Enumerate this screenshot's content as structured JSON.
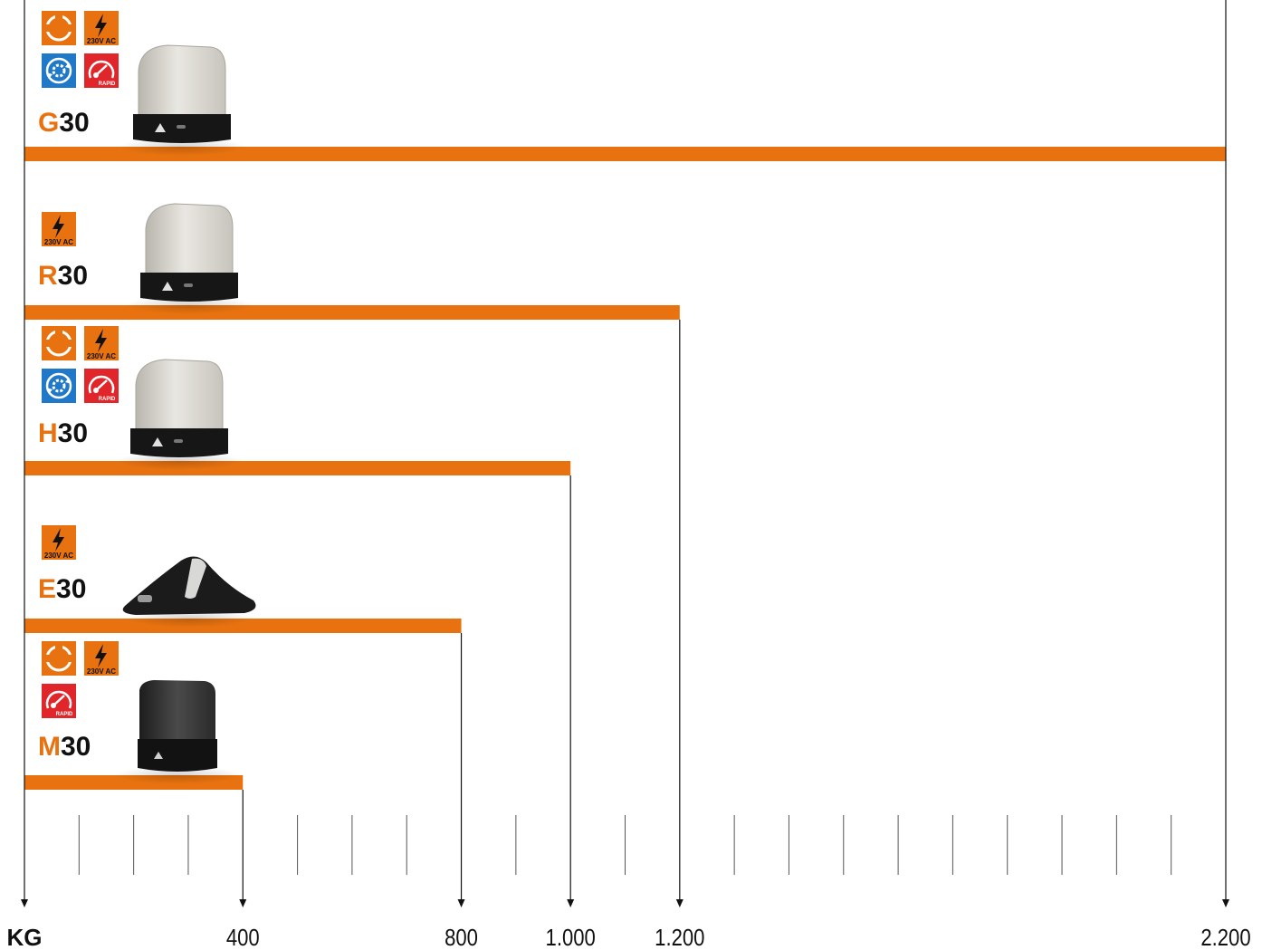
{
  "chart_data": {
    "type": "bar",
    "orientation": "horizontal",
    "unit_label": "KG",
    "categories": [
      "G30",
      "R30",
      "H30",
      "E30",
      "M30"
    ],
    "series": [
      {
        "values": [
          2200,
          1200,
          1000,
          800,
          400
        ]
      }
    ],
    "xlim": [
      0,
      2200
    ],
    "tick_labels": [
      "400",
      "800",
      "1.000",
      "1.200",
      "2.200"
    ],
    "tick_values": [
      400,
      800,
      1000,
      1200,
      2200
    ],
    "minor_ticks_step": 100,
    "grid": false,
    "legend": "none",
    "bar_color": "#e8720f",
    "models": [
      {
        "letter": "G",
        "suffix": "30",
        "badges": [
          "cycle-icon",
          "power-230v-icon",
          "gear-cycle-icon",
          "rapid-speed-icon"
        ],
        "product": "light-grey"
      },
      {
        "letter": "R",
        "suffix": "30",
        "badges": [
          "power-230v-icon"
        ],
        "product": "light-grey"
      },
      {
        "letter": "H",
        "suffix": "30",
        "badges": [
          "cycle-icon",
          "power-230v-icon",
          "gear-cycle-icon",
          "rapid-speed-icon"
        ],
        "product": "light-grey"
      },
      {
        "letter": "E",
        "suffix": "30",
        "badges": [
          "power-230v-icon"
        ],
        "product": "black-wedge"
      },
      {
        "letter": "M",
        "suffix": "30",
        "badges": [
          "cycle-icon",
          "power-230v-icon",
          "rapid-speed-icon"
        ],
        "product": "dark"
      }
    ],
    "badge_texts": {
      "power": "230V AC",
      "rapid": "RAPID"
    },
    "colors": {
      "orange": "#e8720f",
      "blue": "#1f78c8",
      "red": "#e0262b",
      "label_accent": "#e8720f",
      "text": "#111111"
    }
  }
}
